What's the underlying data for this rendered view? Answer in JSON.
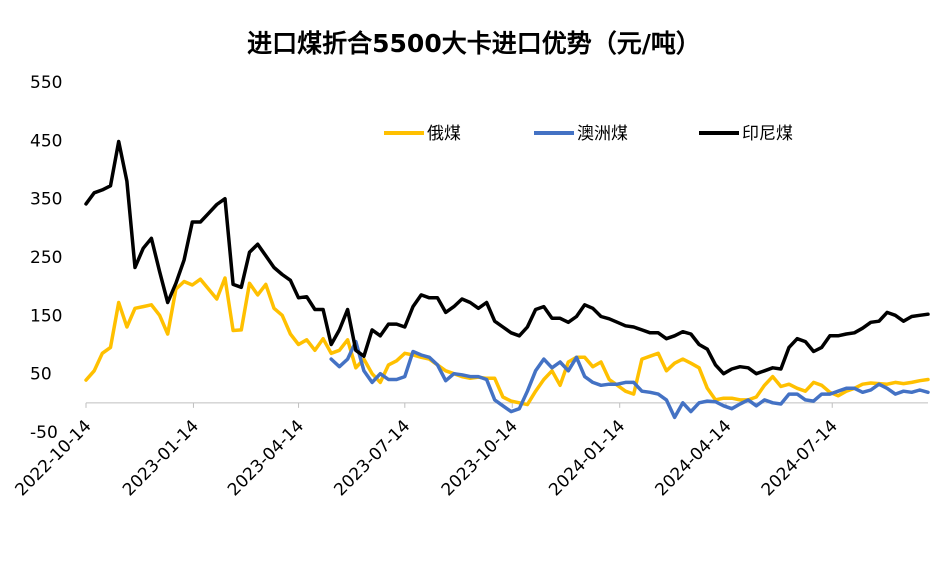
{
  "chart_data": {
    "type": "line",
    "title": "进口煤折合5500大卡进口优势（元/吨）",
    "xlabel": "",
    "ylabel": "",
    "ylim": [
      -50,
      550
    ],
    "yticks": [
      "550",
      "450",
      "350",
      "250",
      "150",
      "50",
      "-50"
    ],
    "xlim": [
      "2022-10-14",
      "2024-10-04"
    ],
    "xticks": [
      "2022-10-14",
      "2023-01-14",
      "2023-04-14",
      "2023-07-14",
      "2023-10-14",
      "2024-01-14",
      "2024-04-14",
      "2024-07-14"
    ],
    "grid": false,
    "legend_position": "top-right",
    "x": [
      "2022-10-14",
      "2022-10-21",
      "2022-10-28",
      "2022-11-04",
      "2022-11-11",
      "2022-11-18",
      "2022-11-25",
      "2022-12-02",
      "2022-12-09",
      "2022-12-16",
      "2022-12-23",
      "2022-12-30",
      "2023-01-06",
      "2023-01-13",
      "2023-01-20",
      "2023-01-27",
      "2023-02-03",
      "2023-02-10",
      "2023-02-17",
      "2023-02-24",
      "2023-03-03",
      "2023-03-10",
      "2023-03-17",
      "2023-03-24",
      "2023-03-31",
      "2023-04-07",
      "2023-04-14",
      "2023-04-21",
      "2023-04-28",
      "2023-05-05",
      "2023-05-12",
      "2023-05-19",
      "2023-05-26",
      "2023-06-02",
      "2023-06-09",
      "2023-06-16",
      "2023-06-23",
      "2023-06-30",
      "2023-07-07",
      "2023-07-14",
      "2023-07-21",
      "2023-07-28",
      "2023-08-04",
      "2023-08-11",
      "2023-08-18",
      "2023-08-25",
      "2023-09-01",
      "2023-09-08",
      "2023-09-15",
      "2023-09-22",
      "2023-09-29",
      "2023-10-06",
      "2023-10-13",
      "2023-10-20",
      "2023-10-27",
      "2023-11-03",
      "2023-11-10",
      "2023-11-17",
      "2023-11-24",
      "2023-12-01",
      "2023-12-08",
      "2023-12-15",
      "2023-12-22",
      "2023-12-29",
      "2024-01-05",
      "2024-01-12",
      "2024-01-19",
      "2024-01-26",
      "2024-02-02",
      "2024-02-09",
      "2024-02-16",
      "2024-02-23",
      "2024-03-01",
      "2024-03-08",
      "2024-03-15",
      "2024-03-22",
      "2024-03-29",
      "2024-04-05",
      "2024-04-12",
      "2024-04-19",
      "2024-04-26",
      "2024-05-03",
      "2024-05-10",
      "2024-05-17",
      "2024-05-24",
      "2024-05-31",
      "2024-06-07",
      "2024-06-14",
      "2024-06-21",
      "2024-06-28",
      "2024-07-05",
      "2024-07-12",
      "2024-07-19",
      "2024-07-26",
      "2024-08-02",
      "2024-08-09",
      "2024-08-16",
      "2024-08-23",
      "2024-08-30",
      "2024-09-06",
      "2024-09-13",
      "2024-09-20",
      "2024-09-27",
      "2024-10-04"
    ],
    "series": [
      {
        "name": "俄煤",
        "color": "#FFC000",
        "values": [
          39,
          55,
          85,
          95,
          172,
          130,
          162,
          165,
          168,
          150,
          118,
          195,
          208,
          202,
          212,
          195,
          178,
          214,
          124,
          125,
          205,
          185,
          203,
          162,
          150,
          118,
          100,
          108,
          90,
          110,
          85,
          90,
          108,
          60,
          75,
          50,
          35,
          65,
          72,
          85,
          82,
          78,
          75,
          65,
          55,
          50,
          45,
          42,
          44,
          42,
          42,
          10,
          3,
          0,
          -3,
          20,
          40,
          55,
          30,
          70,
          78,
          78,
          62,
          70,
          40,
          30,
          20,
          15,
          75,
          80,
          85,
          55,
          68,
          75,
          68,
          60,
          25,
          5,
          8,
          8,
          5,
          5,
          10,
          30,
          45,
          28,
          32,
          25,
          20,
          35,
          30,
          18,
          12,
          20,
          25,
          32,
          34,
          33,
          32,
          35,
          33,
          35,
          38,
          40
        ]
      },
      {
        "name": "澳洲煤",
        "color": "#4472C4",
        "values": [
          null,
          null,
          null,
          null,
          null,
          null,
          null,
          null,
          null,
          null,
          null,
          null,
          null,
          null,
          null,
          null,
          null,
          null,
          null,
          null,
          null,
          null,
          null,
          null,
          null,
          null,
          null,
          null,
          null,
          null,
          75,
          62,
          75,
          105,
          55,
          35,
          50,
          40,
          40,
          45,
          88,
          82,
          78,
          65,
          38,
          50,
          48,
          45,
          45,
          40,
          5,
          -5,
          -15,
          -10,
          20,
          55,
          75,
          60,
          70,
          55,
          78,
          45,
          35,
          30,
          32,
          32,
          35,
          35,
          20,
          18,
          15,
          5,
          -25,
          0,
          -15,
          0,
          3,
          2,
          -5,
          -10,
          -2,
          5,
          -5,
          5,
          0,
          -2,
          15,
          15,
          5,
          3,
          15,
          15,
          20,
          25,
          25,
          18,
          22,
          32,
          25,
          15,
          20,
          18,
          22,
          18
        ]
      },
      {
        "name": "印尼煤",
        "color": "#000000",
        "values": [
          341,
          360,
          365,
          372,
          448,
          380,
          232,
          265,
          282,
          225,
          172,
          205,
          245,
          310,
          310,
          325,
          340,
          350,
          203,
          198,
          258,
          272,
          252,
          232,
          220,
          210,
          180,
          182,
          160,
          160,
          100,
          125,
          160,
          90,
          80,
          125,
          115,
          135,
          135,
          130,
          165,
          185,
          180,
          180,
          155,
          165,
          178,
          172,
          162,
          172,
          140,
          130,
          120,
          115,
          130,
          160,
          165,
          145,
          145,
          138,
          148,
          168,
          162,
          148,
          144,
          138,
          132,
          130,
          125,
          120,
          120,
          110,
          115,
          122,
          118,
          100,
          92,
          65,
          50,
          58,
          62,
          60,
          50,
          55,
          60,
          58,
          95,
          110,
          105,
          88,
          95,
          115,
          115,
          118,
          120,
          128,
          138,
          140,
          155,
          150,
          140,
          148,
          150,
          152
        ]
      }
    ]
  }
}
